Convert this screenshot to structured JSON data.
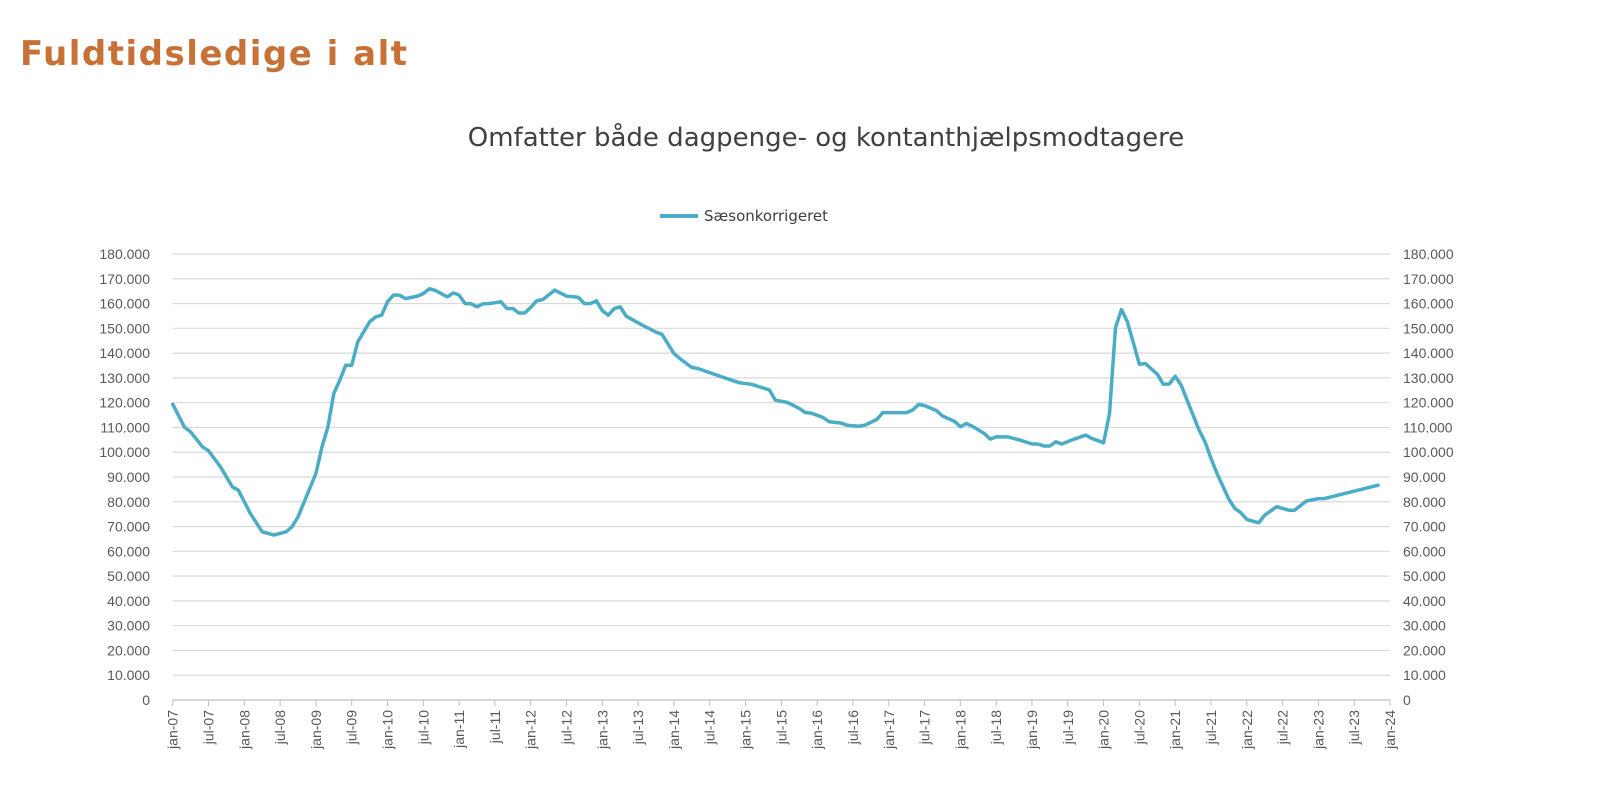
{
  "page_title": "Fuldtidsledige i alt",
  "chart_data": {
    "type": "line",
    "title": "Omfatter både dagpenge- og kontanthjælpsmodtagere",
    "xlabel": "",
    "ylabel": "",
    "ylim": [
      0,
      180000
    ],
    "ytick_step": 10000,
    "ytick_labels": [
      "0",
      "10.000",
      "20.000",
      "30.000",
      "40.000",
      "50.000",
      "60.000",
      "70.000",
      "80.000",
      "90.000",
      "100.000",
      "110.000",
      "120.000",
      "130.000",
      "140.000",
      "150.000",
      "160.000",
      "170.000",
      "180.000"
    ],
    "secondary_y_axis": true,
    "xtick_labels": [
      "jan-07",
      "jul-07",
      "jan-08",
      "jul-08",
      "jan-09",
      "jul-09",
      "jan-10",
      "jul-10",
      "jan-11",
      "jul-11",
      "jan-12",
      "jul-12",
      "jan-13",
      "jul-13",
      "jan-14",
      "jul-14",
      "jan-15",
      "jul-15",
      "jan-16",
      "jul-16",
      "jan-17",
      "jul-17",
      "jan-18",
      "jul-18",
      "jan-19",
      "jul-19",
      "jan-20",
      "jul-20",
      "jan-21",
      "jul-21",
      "jan-22",
      "jul-22",
      "jan-23",
      "jul-23",
      "jan-24"
    ],
    "xlim": [
      "2007-01",
      "2024-01"
    ],
    "grid": true,
    "legend_placement": "top",
    "series": [
      {
        "name": "Sæsonkorrigeret",
        "color": "#4BACC6",
        "x": [
          "2007-01",
          "2007-03",
          "2007-04",
          "2007-06",
          "2007-07",
          "2007-09",
          "2007-11",
          "2007-12",
          "2008-02",
          "2008-04",
          "2008-06",
          "2008-08",
          "2008-09",
          "2008-10",
          "2009-01",
          "2009-02",
          "2009-03",
          "2009-04",
          "2009-05",
          "2009-06",
          "2009-07",
          "2009-08",
          "2009-10",
          "2009-11",
          "2009-12",
          "2010-01",
          "2010-02",
          "2010-03",
          "2010-04",
          "2010-06",
          "2010-07",
          "2010-08",
          "2010-09",
          "2010-11",
          "2010-12",
          "2011-01",
          "2011-02",
          "2011-03",
          "2011-04",
          "2011-05",
          "2011-06",
          "2011-08",
          "2011-09",
          "2011-10",
          "2011-11",
          "2011-12",
          "2012-01",
          "2012-02",
          "2012-03",
          "2012-05",
          "2012-07",
          "2012-08",
          "2012-09",
          "2012-10",
          "2012-11",
          "2012-12",
          "2013-01",
          "2013-02",
          "2013-03",
          "2013-04",
          "2013-05",
          "2013-08",
          "2013-10",
          "2013-11",
          "2014-01",
          "2014-02",
          "2014-04",
          "2014-05",
          "2014-09",
          "2014-12",
          "2015-02",
          "2015-05",
          "2015-06",
          "2015-08",
          "2015-10",
          "2015-11",
          "2015-12",
          "2016-02",
          "2016-03",
          "2016-05",
          "2016-06",
          "2016-08",
          "2016-09",
          "2016-11",
          "2016-12",
          "2017-04",
          "2017-05",
          "2017-06",
          "2017-07",
          "2017-09",
          "2017-10",
          "2017-12",
          "2018-01",
          "2018-02",
          "2018-03",
          "2018-05",
          "2018-06",
          "2018-07",
          "2018-09",
          "2018-11",
          "2019-01",
          "2019-02",
          "2019-03",
          "2019-04",
          "2019-05",
          "2019-06",
          "2019-08",
          "2019-10",
          "2019-11",
          "2020-01",
          "2020-02",
          "2020-03",
          "2020-04",
          "2020-05",
          "2020-07",
          "2020-08",
          "2020-10",
          "2020-11",
          "2020-12",
          "2021-01",
          "2021-02",
          "2021-05",
          "2021-06",
          "2021-07",
          "2021-08",
          "2021-10",
          "2021-11",
          "2021-12",
          "2022-01",
          "2022-03",
          "2022-04",
          "2022-06",
          "2022-08",
          "2022-09",
          "2022-11",
          "2023-01",
          "2023-02",
          "2023-11"
        ],
        "values": [
          119400,
          110000,
          108200,
          102200,
          100600,
          94100,
          86000,
          84700,
          75300,
          67900,
          66600,
          67900,
          69900,
          73900,
          91400,
          102000,
          110000,
          123700,
          129100,
          135100,
          135100,
          144500,
          152600,
          154600,
          155300,
          160700,
          163400,
          163400,
          162000,
          163000,
          164000,
          166000,
          165300,
          162700,
          164300,
          163400,
          160000,
          159900,
          158700,
          159900,
          160000,
          160700,
          158000,
          158000,
          156200,
          156200,
          158500,
          161100,
          161600,
          165400,
          163000,
          162800,
          162500,
          160000,
          160000,
          161100,
          157100,
          155300,
          158000,
          158700,
          154900,
          150900,
          148500,
          147600,
          139900,
          137800,
          134200,
          133800,
          130400,
          128000,
          127400,
          125100,
          121000,
          120100,
          117700,
          116000,
          115800,
          114000,
          112300,
          111800,
          110900,
          110500,
          110900,
          113200,
          116000,
          116000,
          117000,
          119300,
          118800,
          116800,
          114600,
          112500,
          110300,
          111600,
          110500,
          107600,
          105300,
          106200,
          106200,
          104900,
          103300,
          103300,
          102500,
          102500,
          104200,
          103300,
          105200,
          106900,
          105600,
          103800,
          115600,
          150300,
          157600,
          152600,
          135500,
          135800,
          131500,
          127500,
          127500,
          130700,
          127100,
          108900,
          104200,
          97500,
          91400,
          81000,
          77300,
          75600,
          72900,
          71500,
          74600,
          78000,
          76600,
          76600,
          80300,
          81300,
          81300,
          86700
        ]
      }
    ]
  }
}
